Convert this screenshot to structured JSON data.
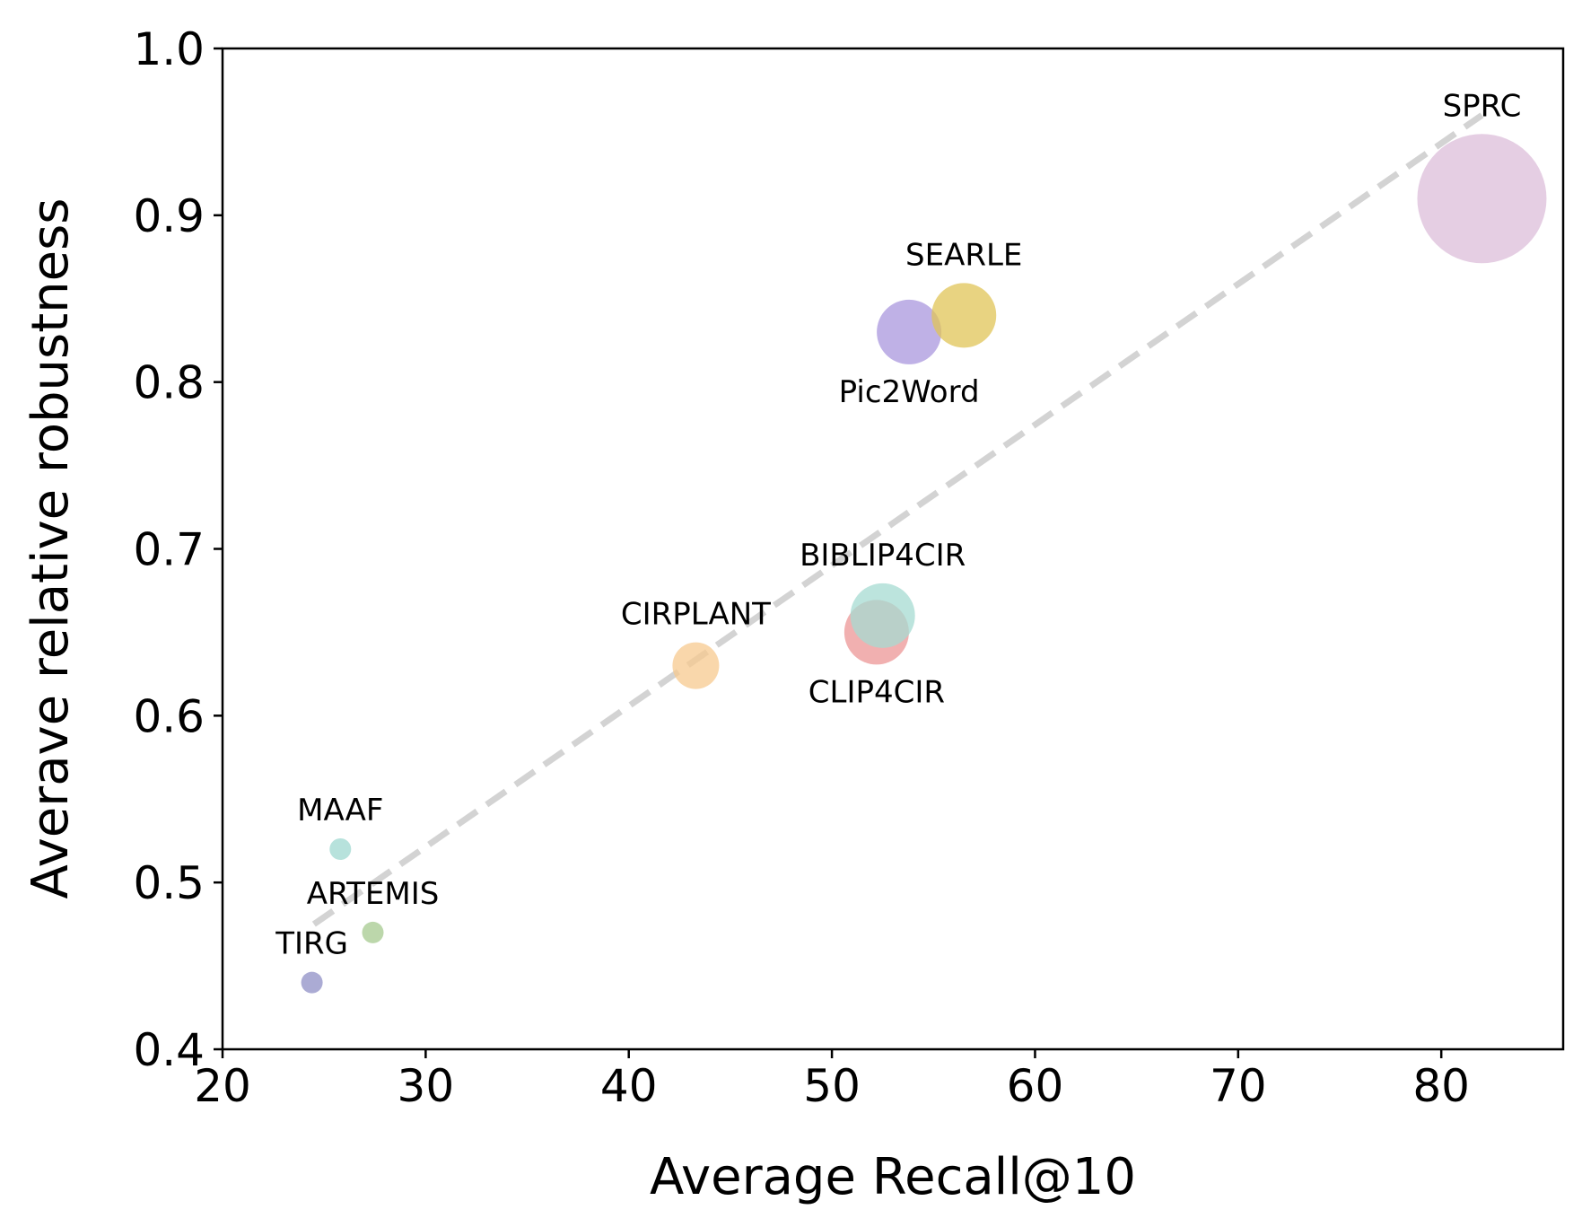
{
  "chart_data": {
    "type": "scatter",
    "title": "",
    "xlabel": "Average Recall@10",
    "ylabel": "Averave relative robustness",
    "xlim": [
      20,
      86
    ],
    "ylim": [
      0.4,
      1.0
    ],
    "x_ticks": [
      "20",
      "30",
      "40",
      "50",
      "60",
      "70",
      "80"
    ],
    "y_ticks": [
      "0.4",
      "0.5",
      "0.6",
      "0.7",
      "0.8",
      "0.9",
      "1.0"
    ],
    "grid": false,
    "legend": "none",
    "trendline": {
      "style": "dashed",
      "color": "#d3d3d3",
      "x": [
        24.5,
        82.0
      ],
      "y": [
        0.475,
        0.96
      ]
    },
    "points": [
      {
        "label": "TIRG",
        "x": 24.4,
        "y": 0.44,
        "size": "small",
        "color": "#8f8fc6",
        "label_pos": "above"
      },
      {
        "label": "ARTEMIS",
        "x": 27.4,
        "y": 0.47,
        "size": "small",
        "color": "#a6c98f",
        "label_pos": "above"
      },
      {
        "label": "MAAF",
        "x": 25.8,
        "y": 0.52,
        "size": "small",
        "color": "#9fd8d0",
        "label_pos": "above"
      },
      {
        "label": "CIRPLANT",
        "x": 43.3,
        "y": 0.63,
        "size": "medium",
        "color": "#f7c98f",
        "label_pos": "above"
      },
      {
        "label": "CLIP4CIR",
        "x": 52.2,
        "y": 0.65,
        "size": "large",
        "color": "#ec9696",
        "label_pos": "below"
      },
      {
        "label": "BIBLIP4CIR",
        "x": 52.5,
        "y": 0.66,
        "size": "large",
        "color": "#a6dbd2",
        "label_pos": "above"
      },
      {
        "label": "Pic2Word",
        "x": 53.8,
        "y": 0.83,
        "size": "large",
        "color": "#a997dd",
        "label_pos": "below"
      },
      {
        "label": "SEARLE",
        "x": 56.5,
        "y": 0.84,
        "size": "large",
        "color": "#e0c457",
        "label_pos": "above"
      },
      {
        "label": "SPRC",
        "x": 82.0,
        "y": 0.91,
        "size": "xlarge",
        "color": "#dcbdd9",
        "label_pos": "above"
      }
    ]
  }
}
